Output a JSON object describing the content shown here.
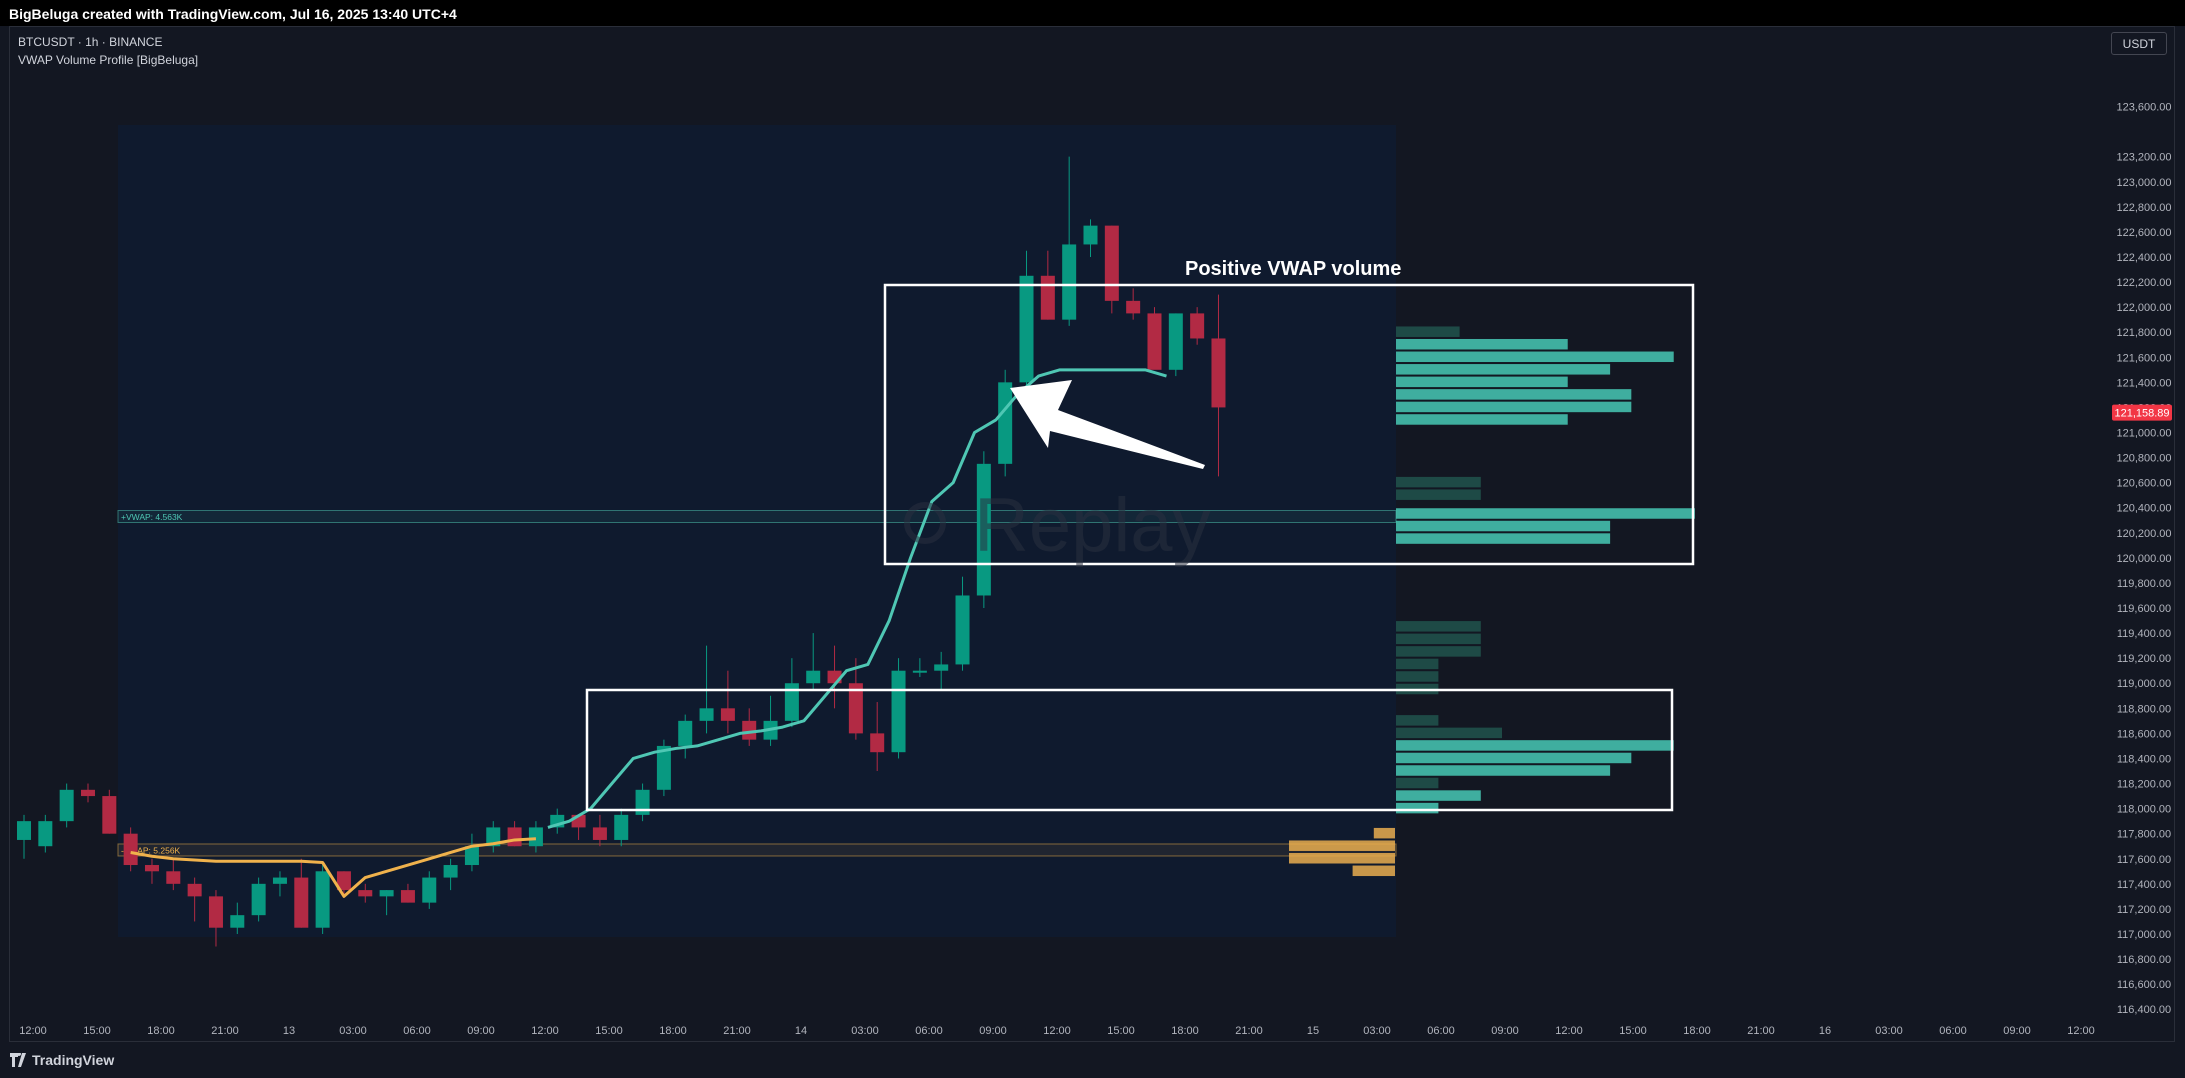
{
  "header": {
    "title": "BigBeluga created with TradingView.com, Jul 16, 2025 13:40 UTC+4"
  },
  "legend": {
    "symbol_line": "BTCUSDT · 1h · BINANCE",
    "indicator": "VWAP Volume Profile [BigBeluga]"
  },
  "currency_button": "USDT",
  "watermark": "Replay",
  "footer": {
    "brand": "TradingView"
  },
  "colors": {
    "background": "#131722",
    "profile_area": "#0f1a2e",
    "bull": "#089981",
    "bear": "#b22a44",
    "vwap_positive": "#4fc7b4",
    "vwap_negative": "#f0b24c",
    "price_tag": "#f23645",
    "annotation": "#ffffff"
  },
  "chart_data": {
    "type": "candlestick",
    "ylim": [
      116300,
      123800
    ],
    "y_ticks": [
      "123,600.00",
      "123,200.00",
      "123,000.00",
      "122,800.00",
      "122,600.00",
      "122,400.00",
      "122,200.00",
      "122,000.00",
      "121,800.00",
      "121,600.00",
      "121,400.00",
      "121,200.00",
      "121,000.00",
      "120,800.00",
      "120,600.00",
      "120,400.00",
      "120,200.00",
      "120,000.00",
      "119,800.00",
      "119,600.00",
      "119,400.00",
      "119,200.00",
      "119,000.00",
      "118,800.00",
      "118,600.00",
      "118,400.00",
      "118,200.00",
      "118,000.00",
      "117,800.00",
      "117,600.00",
      "117,400.00",
      "117,200.00",
      "117,000.00",
      "116,800.00",
      "116,600.00",
      "116,400.00"
    ],
    "x_ticks": [
      "12:00",
      "15:00",
      "18:00",
      "21:00",
      "13",
      "03:00",
      "06:00",
      "09:00",
      "12:00",
      "15:00",
      "18:00",
      "21:00",
      "14",
      "03:00",
      "06:00",
      "09:00",
      "12:00",
      "15:00",
      "18:00",
      "21:00",
      "15",
      "03:00",
      "06:00",
      "09:00",
      "12:00",
      "15:00",
      "18:00",
      "21:00",
      "16",
      "03:00",
      "06:00",
      "09:00",
      "12:00"
    ],
    "current_price": "121,158.89",
    "candles": [
      {
        "o": 117750,
        "h": 117950,
        "l": 117600,
        "c": 117900
      },
      {
        "o": 117700,
        "h": 117950,
        "l": 117650,
        "c": 117900
      },
      {
        "o": 117900,
        "h": 118200,
        "l": 117850,
        "c": 118150
      },
      {
        "o": 118150,
        "h": 118200,
        "l": 118050,
        "c": 118100
      },
      {
        "o": 118100,
        "h": 118150,
        "l": 117800,
        "c": 117800
      },
      {
        "o": 117800,
        "h": 117850,
        "l": 117500,
        "c": 117550
      },
      {
        "o": 117550,
        "h": 117600,
        "l": 117400,
        "c": 117500
      },
      {
        "o": 117500,
        "h": 117600,
        "l": 117350,
        "c": 117400
      },
      {
        "o": 117400,
        "h": 117450,
        "l": 117100,
        "c": 117300
      },
      {
        "o": 117300,
        "h": 117350,
        "l": 116900,
        "c": 117050
      },
      {
        "o": 117050,
        "h": 117250,
        "l": 117000,
        "c": 117150
      },
      {
        "o": 117150,
        "h": 117450,
        "l": 117100,
        "c": 117400
      },
      {
        "o": 117400,
        "h": 117500,
        "l": 117300,
        "c": 117450
      },
      {
        "o": 117450,
        "h": 117600,
        "l": 117050,
        "c": 117050
      },
      {
        "o": 117050,
        "h": 117550,
        "l": 117000,
        "c": 117500
      },
      {
        "o": 117500,
        "h": 117500,
        "l": 117300,
        "c": 117350
      },
      {
        "o": 117350,
        "h": 117400,
        "l": 117250,
        "c": 117300
      },
      {
        "o": 117300,
        "h": 117350,
        "l": 117150,
        "c": 117350
      },
      {
        "o": 117350,
        "h": 117400,
        "l": 117250,
        "c": 117250
      },
      {
        "o": 117250,
        "h": 117500,
        "l": 117200,
        "c": 117450
      },
      {
        "o": 117450,
        "h": 117600,
        "l": 117350,
        "c": 117550
      },
      {
        "o": 117550,
        "h": 117800,
        "l": 117500,
        "c": 117700
      },
      {
        "o": 117700,
        "h": 117900,
        "l": 117650,
        "c": 117850
      },
      {
        "o": 117850,
        "h": 117900,
        "l": 117700,
        "c": 117700
      },
      {
        "o": 117700,
        "h": 117900,
        "l": 117650,
        "c": 117850
      },
      {
        "o": 117850,
        "h": 118000,
        "l": 117800,
        "c": 117950
      },
      {
        "o": 117950,
        "h": 117950,
        "l": 117750,
        "c": 117850
      },
      {
        "o": 117850,
        "h": 117950,
        "l": 117700,
        "c": 117750
      },
      {
        "o": 117750,
        "h": 118000,
        "l": 117700,
        "c": 117950
      },
      {
        "o": 117950,
        "h": 118200,
        "l": 117900,
        "c": 118150
      },
      {
        "o": 118150,
        "h": 118550,
        "l": 118100,
        "c": 118500
      },
      {
        "o": 118500,
        "h": 118750,
        "l": 118400,
        "c": 118700
      },
      {
        "o": 118700,
        "h": 119300,
        "l": 118600,
        "c": 118800
      },
      {
        "o": 118800,
        "h": 119100,
        "l": 118600,
        "c": 118700
      },
      {
        "o": 118700,
        "h": 118800,
        "l": 118500,
        "c": 118550
      },
      {
        "o": 118550,
        "h": 118900,
        "l": 118500,
        "c": 118700
      },
      {
        "o": 118700,
        "h": 119200,
        "l": 118650,
        "c": 119000
      },
      {
        "o": 119000,
        "h": 119400,
        "l": 118950,
        "c": 119100
      },
      {
        "o": 119100,
        "h": 119300,
        "l": 118800,
        "c": 119000
      },
      {
        "o": 119000,
        "h": 119200,
        "l": 118550,
        "c": 118600
      },
      {
        "o": 118600,
        "h": 118850,
        "l": 118300,
        "c": 118450
      },
      {
        "o": 118450,
        "h": 119200,
        "l": 118400,
        "c": 119100
      },
      {
        "o": 119100,
        "h": 119200,
        "l": 119050,
        "c": 119100
      },
      {
        "o": 119100,
        "h": 119250,
        "l": 118950,
        "c": 119150
      },
      {
        "o": 119150,
        "h": 119850,
        "l": 119100,
        "c": 119700
      },
      {
        "o": 119700,
        "h": 120850,
        "l": 119600,
        "c": 120750
      },
      {
        "o": 120750,
        "h": 121500,
        "l": 120650,
        "c": 121400
      },
      {
        "o": 121400,
        "h": 122450,
        "l": 121200,
        "c": 122250
      },
      {
        "o": 122250,
        "h": 122450,
        "l": 121900,
        "c": 121900
      },
      {
        "o": 121900,
        "h": 123200,
        "l": 121850,
        "c": 122500
      },
      {
        "o": 122500,
        "h": 122700,
        "l": 122400,
        "c": 122650
      },
      {
        "o": 122650,
        "h": 122650,
        "l": 121950,
        "c": 122050
      },
      {
        "o": 122050,
        "h": 122150,
        "l": 121900,
        "c": 121950
      },
      {
        "o": 121950,
        "h": 122000,
        "l": 121550,
        "c": 121500
      },
      {
        "o": 121500,
        "h": 121950,
        "l": 121450,
        "c": 121950
      },
      {
        "o": 121950,
        "h": 122000,
        "l": 121700,
        "c": 121750
      },
      {
        "o": 121750,
        "h": 122100,
        "l": 120650,
        "c": 121200
      }
    ],
    "vwap_series": [
      {
        "name": "VWAP-",
        "values": [
          117650,
          117620,
          117600,
          117590,
          117580,
          117580,
          117580,
          117580,
          117580,
          117570,
          117300,
          117450,
          117500,
          117550,
          117600,
          117650,
          117700,
          117720,
          117750,
          117760
        ]
      },
      {
        "name": "VWAP+",
        "values": [
          117850,
          117900,
          118000,
          118200,
          118400,
          118450,
          118480,
          118500,
          118550,
          118600,
          118620,
          118650,
          118700,
          118900,
          119100,
          119150,
          119500,
          120000,
          120450,
          120600,
          121000,
          121100,
          121300,
          121450,
          121500,
          121500,
          121500,
          121500,
          121500,
          121450
        ]
      }
    ],
    "vwap_labels": [
      {
        "text": "+VWAP: 4.563K",
        "price": 120330
      },
      {
        "text": "-VWAP: 5.256K",
        "price": 117670
      }
    ],
    "volume_profile": [
      {
        "price": 121800,
        "level": 0.3,
        "kind": "dim"
      },
      {
        "price": 121700,
        "level": 0.81,
        "kind": "pos"
      },
      {
        "price": 121600,
        "level": 1.31,
        "kind": "pos"
      },
      {
        "price": 121500,
        "level": 1.01,
        "kind": "pos"
      },
      {
        "price": 121400,
        "level": 0.81,
        "kind": "pos"
      },
      {
        "price": 121300,
        "level": 1.11,
        "kind": "pos"
      },
      {
        "price": 121200,
        "level": 1.11,
        "kind": "pos"
      },
      {
        "price": 121100,
        "level": 0.81,
        "kind": "pos"
      },
      {
        "price": 120600,
        "level": 0.4,
        "kind": "dim"
      },
      {
        "price": 120500,
        "level": 0.4,
        "kind": "dim"
      },
      {
        "price": 120350,
        "level": 1.41,
        "kind": "pos"
      },
      {
        "price": 120250,
        "level": 1.01,
        "kind": "pos"
      },
      {
        "price": 120150,
        "level": 1.01,
        "kind": "pos"
      },
      {
        "price": 119450,
        "level": 0.4,
        "kind": "dim"
      },
      {
        "price": 119350,
        "level": 0.4,
        "kind": "dim"
      },
      {
        "price": 119250,
        "level": 0.4,
        "kind": "dim"
      },
      {
        "price": 119150,
        "level": 0.2,
        "kind": "dim"
      },
      {
        "price": 119050,
        "level": 0.2,
        "kind": "dim"
      },
      {
        "price": 118950,
        "level": 0.2,
        "kind": "dim"
      },
      {
        "price": 118700,
        "level": 0.2,
        "kind": "dim"
      },
      {
        "price": 118600,
        "level": 0.5,
        "kind": "dim"
      },
      {
        "price": 118500,
        "level": 1.31,
        "kind": "pos"
      },
      {
        "price": 118400,
        "level": 1.11,
        "kind": "pos"
      },
      {
        "price": 118300,
        "level": 1.01,
        "kind": "pos"
      },
      {
        "price": 118200,
        "level": 0.2,
        "kind": "dim"
      },
      {
        "price": 118100,
        "level": 0.4,
        "kind": "pos"
      },
      {
        "price": 118000,
        "level": 0.2,
        "kind": "pos"
      },
      {
        "price": 117800,
        "level": 0.1,
        "kind": "neg"
      },
      {
        "price": 117700,
        "level": 0.5,
        "kind": "neg"
      },
      {
        "price": 117600,
        "level": 0.5,
        "kind": "neg"
      },
      {
        "price": 117500,
        "level": 0.2,
        "kind": "neg"
      }
    ],
    "annotation": "Positive VWAP volume"
  }
}
